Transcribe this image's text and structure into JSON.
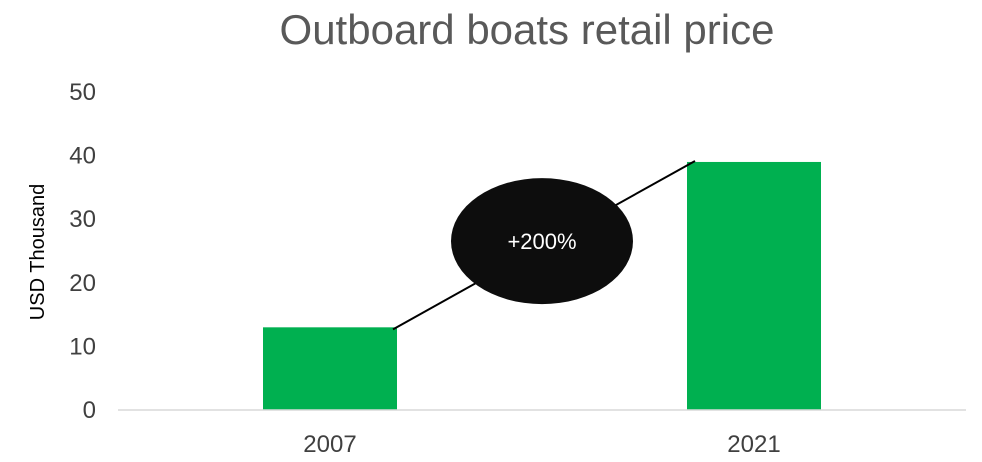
{
  "chart_data": {
    "type": "bar",
    "title": "Outboard boats retail price",
    "ylabel": "USD Thousand",
    "xlabel": "",
    "categories": [
      "2007",
      "2021"
    ],
    "values": [
      13,
      39
    ],
    "ylim": [
      0,
      50
    ],
    "yticks": [
      0,
      10,
      20,
      30,
      40,
      50
    ],
    "grid": false,
    "legend": "none",
    "annotation": {
      "label": "+200%",
      "from_value": 13,
      "to_value": 39
    },
    "colors": {
      "bar": "#00b050",
      "annotation_fill": "#0d0d0d",
      "annotation_text": "#ffffff",
      "axis": "#d9d9d9",
      "connector": "#000000"
    }
  }
}
